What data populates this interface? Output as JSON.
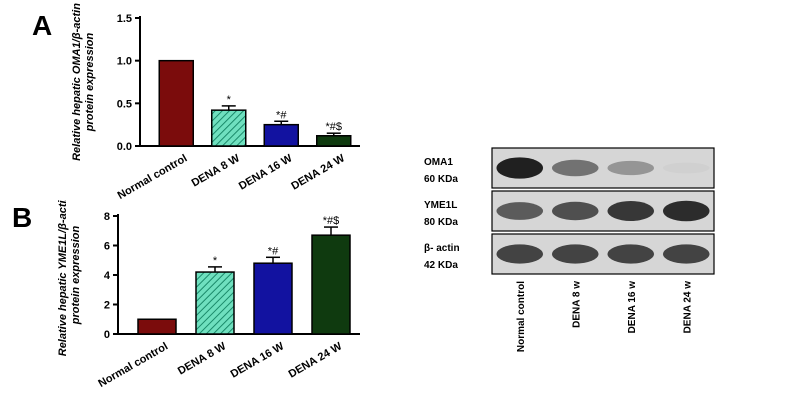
{
  "panel_a_letter": "A",
  "panel_b_letter": "B",
  "chart_data": [
    {
      "type": "bar",
      "panel": "A",
      "ylabel": "Relative hepatic OMA1/β-actin protein expression",
      "ylabel_line1": "Relative hepatic OMA1/β-actin",
      "ylabel_line2": "protein expression",
      "categories": [
        "Normal control",
        "DENA 8 W",
        "DENA 16 W",
        "DENA 24 W"
      ],
      "values": [
        1.0,
        0.42,
        0.25,
        0.12
      ],
      "errors": [
        0.0,
        0.05,
        0.04,
        0.03
      ],
      "annotations": [
        "",
        "*",
        "*#",
        "*#$"
      ],
      "ylim": [
        0,
        1.5
      ],
      "yticks": [
        "0.0",
        "0.5",
        "1.0",
        "1.5"
      ],
      "colors": [
        "#7b0c0c",
        "#33c9a0",
        "#1212a0",
        "#0f3a0f"
      ]
    },
    {
      "type": "bar",
      "panel": "B",
      "ylabel": "Relative hepatic YME1L/β-actin protein expression",
      "ylabel_line1": "Relative hepatic YME1L/β-actin",
      "ylabel_line2": "protein expression",
      "categories": [
        "Normal control",
        "DENA 8 W",
        "DENA 16 W",
        "DENA 24 W"
      ],
      "values": [
        1.0,
        4.2,
        4.8,
        6.7
      ],
      "errors": [
        0.0,
        0.35,
        0.4,
        0.55
      ],
      "annotations": [
        "",
        "*",
        "*#",
        "*#$"
      ],
      "ylim": [
        0,
        8
      ],
      "yticks": [
        "0",
        "2",
        "4",
        "6",
        "8"
      ],
      "colors": [
        "#7b0c0c",
        "#33c9a0",
        "#1212a0",
        "#0f3a0f"
      ]
    }
  ],
  "blot": {
    "rows": [
      {
        "label_name": "OMA1",
        "label_kda": "60 KDa",
        "intensities": [
          0.95,
          0.6,
          0.45,
          0.2
        ]
      },
      {
        "label_name": "YME1L",
        "label_kda": "80 KDa",
        "intensities": [
          0.7,
          0.75,
          0.85,
          0.9
        ]
      },
      {
        "label_name": "β- actin",
        "label_kda": "42 KDa",
        "intensities": [
          0.8,
          0.8,
          0.8,
          0.8
        ]
      }
    ],
    "lanes": [
      "Normal control",
      "DENA 8 w",
      "DENA 16 w",
      "DENA 24 w"
    ]
  }
}
